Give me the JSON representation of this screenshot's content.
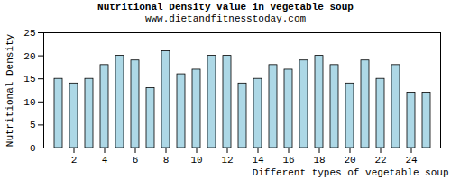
{
  "chart_data": {
    "type": "bar",
    "title": "Nutritional Density Value in vegetable soup",
    "subtitle": "www.dietandfitnesstoday.com",
    "x_label": "Different types of vegetable soup",
    "y_label": "Nutritional Density",
    "categories": [
      null,
      "2",
      null,
      "4",
      null,
      "6",
      null,
      "8",
      null,
      "10",
      null,
      "12",
      null,
      "14",
      null,
      "16",
      null,
      "18",
      null,
      "20",
      null,
      "22",
      null,
      "24",
      null
    ],
    "values": [
      15,
      14,
      15,
      18,
      20,
      19,
      13,
      21,
      16,
      17,
      20,
      20,
      14,
      15,
      18,
      17,
      19,
      20,
      18,
      14,
      19,
      15,
      18,
      12,
      12
    ],
    "color": "#add8e6",
    "ylim": [
      0,
      25
    ],
    "yticks": [
      0,
      5,
      10,
      15,
      20,
      25
    ],
    "grid": false
  }
}
